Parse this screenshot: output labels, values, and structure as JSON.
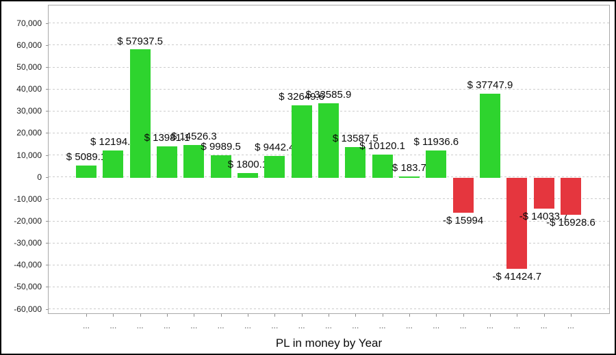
{
  "chart_data": {
    "type": "bar",
    "title": "",
    "xlabel": "PL in money by Year",
    "ylabel": "",
    "ylim": [
      -62000,
      78000
    ],
    "grid": "dashed horizontal lines every 10000",
    "legend": "none",
    "y_ticks": [
      {
        "value": 70000,
        "label": "70,000"
      },
      {
        "value": 60000,
        "label": "60,000"
      },
      {
        "value": 50000,
        "label": "50,000"
      },
      {
        "value": 40000,
        "label": "40,000"
      },
      {
        "value": 30000,
        "label": "30,000"
      },
      {
        "value": 20000,
        "label": "20,000"
      },
      {
        "value": 10000,
        "label": "10,000"
      },
      {
        "value": 0,
        "label": "0"
      },
      {
        "value": -10000,
        "label": "-10,000"
      },
      {
        "value": -20000,
        "label": "-20,000"
      },
      {
        "value": -30000,
        "label": "-30,000"
      },
      {
        "value": -40000,
        "label": "-40,000"
      },
      {
        "value": -50000,
        "label": "-50,000"
      },
      {
        "value": -60000,
        "label": "-60,000"
      }
    ],
    "categories": [
      "...",
      "...",
      "...",
      "...",
      "...",
      "...",
      "...",
      "...",
      "...",
      "...",
      "...",
      "...",
      "...",
      "...",
      "...",
      "...",
      "...",
      "...",
      "..."
    ],
    "values": [
      5089.1,
      12194.5,
      57937.5,
      13981.1,
      14526.3,
      9989.5,
      1800.1,
      9442.4,
      32649.6,
      33585.9,
      13587.5,
      10120.1,
      183.7,
      11936.6,
      -15994,
      37747.9,
      -41424.7,
      -14033.7,
      -16928.6
    ],
    "bar_labels": [
      "$ 5089.1",
      "$ 12194.5",
      "$ 57937.5",
      "$ 13981.1",
      "$ 14526.3",
      "$ 9989.5",
      "$ 1800.1",
      "$ 9442.4",
      "$ 32649.6",
      "$ 33585.9",
      "$ 13587.5",
      "$ 10120.1",
      "$ 183.7",
      "$ 11936.6",
      "-$ 15994",
      "$ 37747.9",
      "-$ 41424.7",
      "-$ 14033.7",
      "-$ 16928.6"
    ],
    "colors": {
      "positive_bar": "#2ed42e",
      "negative_bar": "#e5363e",
      "gridline": "#cdcdcd",
      "plot_border": "#a8a8a8",
      "axis_tick": "#8e8e8e",
      "y_axis_label_text": "#1c1c1c",
      "x_axis_label_text": "#565656",
      "data_label_text": "#0a0a0a",
      "frame_border": "#000000",
      "background": "#ffffff"
    }
  }
}
